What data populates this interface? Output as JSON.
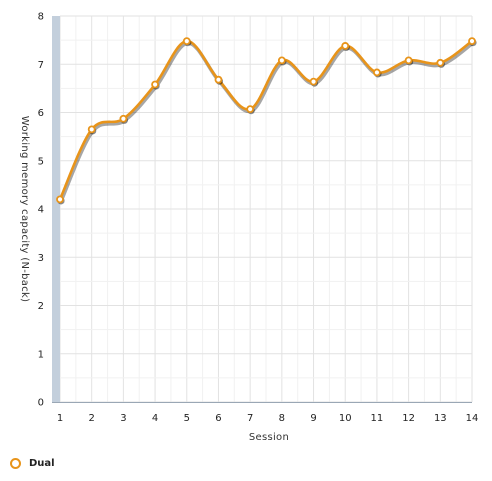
{
  "chart_data": {
    "type": "line",
    "xlabel": "Session",
    "ylabel": "Working memory capacity (N-back)",
    "x": [
      1,
      2,
      3,
      4,
      5,
      6,
      7,
      8,
      9,
      10,
      11,
      12,
      13,
      14
    ],
    "xlim": [
      1,
      14
    ],
    "ylim": [
      0,
      8
    ],
    "y_ticks": [
      0,
      1,
      2,
      3,
      4,
      5,
      6,
      7,
      8
    ],
    "grid": true,
    "legend_position": "bottom-left",
    "series": [
      {
        "name": "Dual",
        "color": "#e8941a",
        "values": [
          4.2,
          5.65,
          5.87,
          6.58,
          7.48,
          6.68,
          6.07,
          7.08,
          6.64,
          7.38,
          6.83,
          7.08,
          7.03,
          7.48
        ]
      }
    ]
  }
}
